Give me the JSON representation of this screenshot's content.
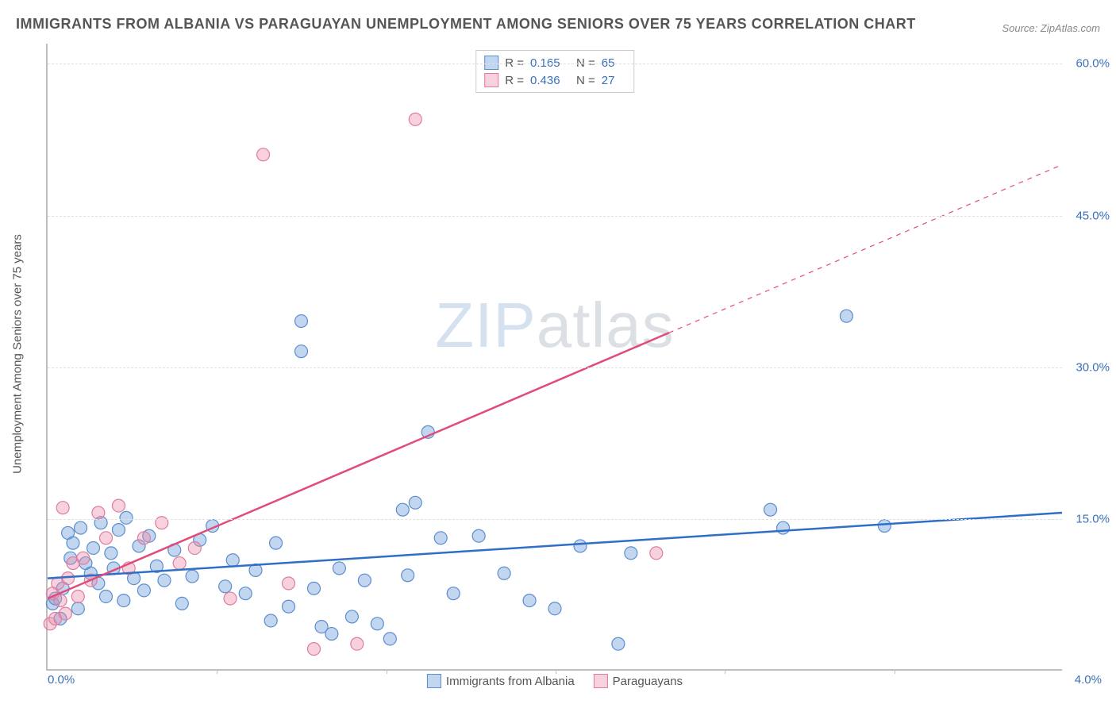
{
  "title": "IMMIGRANTS FROM ALBANIA VS PARAGUAYAN UNEMPLOYMENT AMONG SENIORS OVER 75 YEARS CORRELATION CHART",
  "source": "Source: ZipAtlas.com",
  "watermark": "ZIPatlas",
  "ylabel": "Unemployment Among Seniors over 75 years",
  "axes": {
    "xlim": [
      0.0,
      4.0
    ],
    "ylim": [
      0.0,
      62.0
    ],
    "yticks": [
      15.0,
      30.0,
      45.0,
      60.0
    ],
    "ytick_labels": [
      "15.0%",
      "30.0%",
      "45.0%",
      "60.0%"
    ],
    "xtick_min_label": "0.0%",
    "xtick_max_label": "4.0%",
    "xtick_marks": [
      0.666,
      1.333,
      2.0,
      2.666,
      3.333
    ],
    "grid_color": "#e0e0e0",
    "axis_color": "#bfbfbf",
    "label_color": "#3b6fb6",
    "label_fontsize": 15
  },
  "series": [
    {
      "name": "Immigrants from Albania",
      "short": "albania",
      "R": "0.165",
      "N": "65",
      "marker_fill": "rgba(120,165,220,0.45)",
      "marker_stroke": "#5a8ecf",
      "line_color": "#2f6fc6",
      "line_width": 2.5,
      "trend": {
        "x1": 0.0,
        "y1": 9.0,
        "x2": 4.0,
        "y2": 15.5,
        "dash_from_x": null
      },
      "marker_radius": 8,
      "points": [
        [
          0.02,
          6.5
        ],
        [
          0.03,
          7.0
        ],
        [
          0.05,
          5.0
        ],
        [
          0.06,
          8.0
        ],
        [
          0.08,
          13.5
        ],
        [
          0.09,
          11.0
        ],
        [
          0.1,
          12.5
        ],
        [
          0.12,
          6.0
        ],
        [
          0.13,
          14.0
        ],
        [
          0.15,
          10.5
        ],
        [
          0.17,
          9.5
        ],
        [
          0.18,
          12.0
        ],
        [
          0.2,
          8.5
        ],
        [
          0.21,
          14.5
        ],
        [
          0.23,
          7.2
        ],
        [
          0.25,
          11.5
        ],
        [
          0.26,
          10.0
        ],
        [
          0.28,
          13.8
        ],
        [
          0.3,
          6.8
        ],
        [
          0.31,
          15.0
        ],
        [
          0.34,
          9.0
        ],
        [
          0.36,
          12.2
        ],
        [
          0.38,
          7.8
        ],
        [
          0.4,
          13.2
        ],
        [
          0.43,
          10.2
        ],
        [
          0.46,
          8.8
        ],
        [
          0.5,
          11.8
        ],
        [
          0.53,
          6.5
        ],
        [
          0.57,
          9.2
        ],
        [
          0.6,
          12.8
        ],
        [
          0.65,
          14.2
        ],
        [
          0.7,
          8.2
        ],
        [
          0.73,
          10.8
        ],
        [
          0.78,
          7.5
        ],
        [
          0.82,
          9.8
        ],
        [
          0.88,
          4.8
        ],
        [
          0.9,
          12.5
        ],
        [
          0.95,
          6.2
        ],
        [
          1.0,
          31.5
        ],
        [
          1.0,
          34.5
        ],
        [
          1.05,
          8.0
        ],
        [
          1.08,
          4.2
        ],
        [
          1.12,
          3.5
        ],
        [
          1.15,
          10.0
        ],
        [
          1.2,
          5.2
        ],
        [
          1.25,
          8.8
        ],
        [
          1.3,
          4.5
        ],
        [
          1.35,
          3.0
        ],
        [
          1.4,
          15.8
        ],
        [
          1.42,
          9.3
        ],
        [
          1.45,
          16.5
        ],
        [
          1.5,
          23.5
        ],
        [
          1.55,
          13.0
        ],
        [
          1.6,
          7.5
        ],
        [
          1.7,
          13.2
        ],
        [
          1.8,
          9.5
        ],
        [
          1.9,
          6.8
        ],
        [
          2.0,
          6.0
        ],
        [
          2.1,
          12.2
        ],
        [
          2.25,
          2.5
        ],
        [
          2.3,
          11.5
        ],
        [
          2.85,
          15.8
        ],
        [
          2.9,
          14.0
        ],
        [
          3.15,
          35.0
        ],
        [
          3.3,
          14.2
        ]
      ]
    },
    {
      "name": "Paraguayans",
      "short": "paraguayans",
      "R": "0.436",
      "N": "27",
      "marker_fill": "rgba(235,140,170,0.40)",
      "marker_stroke": "#e07ba0",
      "line_color": "#e14b7a",
      "line_width": 2.5,
      "trend": {
        "x1": 0.0,
        "y1": 7.0,
        "x2": 4.0,
        "y2": 50.0,
        "dash_from_x": 2.45
      },
      "marker_radius": 8,
      "points": [
        [
          0.01,
          4.5
        ],
        [
          0.02,
          7.5
        ],
        [
          0.03,
          5.0
        ],
        [
          0.04,
          8.5
        ],
        [
          0.05,
          6.8
        ],
        [
          0.06,
          16.0
        ],
        [
          0.07,
          5.5
        ],
        [
          0.08,
          9.0
        ],
        [
          0.1,
          10.5
        ],
        [
          0.12,
          7.2
        ],
        [
          0.14,
          11.0
        ],
        [
          0.17,
          8.8
        ],
        [
          0.2,
          15.5
        ],
        [
          0.23,
          13.0
        ],
        [
          0.28,
          16.2
        ],
        [
          0.32,
          10.0
        ],
        [
          0.38,
          13.0
        ],
        [
          0.45,
          14.5
        ],
        [
          0.52,
          10.5
        ],
        [
          0.58,
          12.0
        ],
        [
          0.72,
          7.0
        ],
        [
          0.85,
          51.0
        ],
        [
          0.95,
          8.5
        ],
        [
          1.05,
          2.0
        ],
        [
          1.22,
          2.5
        ],
        [
          1.45,
          54.5
        ],
        [
          2.4,
          11.5
        ]
      ]
    }
  ],
  "legend_top_labels": {
    "R": "R  =",
    "N": "N  ="
  },
  "legend_bottom": [
    {
      "label": "Immigrants from Albania",
      "fill": "rgba(120,165,220,0.45)",
      "stroke": "#5a8ecf"
    },
    {
      "label": "Paraguayans",
      "fill": "rgba(235,140,170,0.40)",
      "stroke": "#e07ba0"
    }
  ]
}
